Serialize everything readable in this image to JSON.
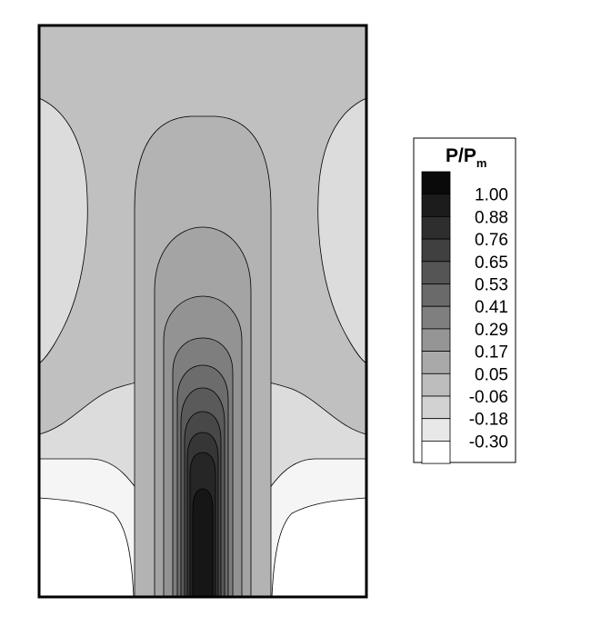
{
  "chart_data": {
    "type": "heatmap",
    "title": "",
    "xlabel": "",
    "ylabel": "",
    "legend": {
      "title": "P/P",
      "title_subscript": "m",
      "placement": "right",
      "levels": [
        "1.00",
        "0.88",
        "0.76",
        "0.65",
        "0.53",
        "0.41",
        "0.29",
        "0.17",
        "0.05",
        "-0.06",
        "-0.18",
        "-0.30"
      ],
      "level_values": [
        1.0,
        0.88,
        0.76,
        0.65,
        0.53,
        0.41,
        0.29,
        0.17,
        0.05,
        -0.06,
        -0.18,
        -0.3
      ],
      "colors": [
        "#0a0a0a",
        "#1c1c1c",
        "#2e2e2e",
        "#404040",
        "#555555",
        "#6a6a6a",
        "#7f7f7f",
        "#959595",
        "#a9a9a9",
        "#bdbdbd",
        "#d2d2d2",
        "#e8e8e8",
        "#ffffff"
      ]
    },
    "grid": false,
    "colormap": "grayscale"
  }
}
